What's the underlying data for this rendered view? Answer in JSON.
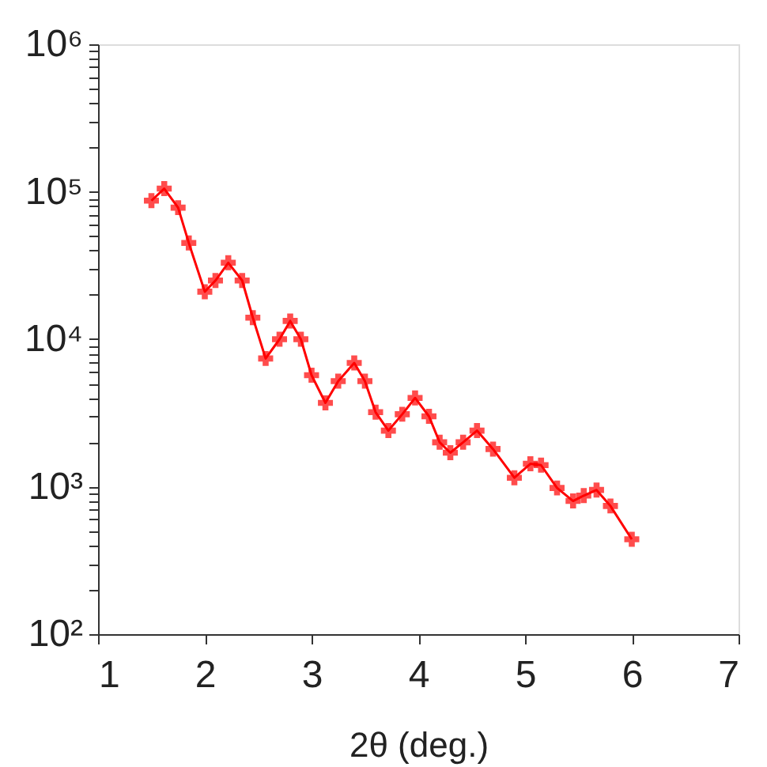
{
  "chart_data": {
    "type": "line",
    "xlabel": "2θ  (deg.)",
    "log": "y",
    "grid": false,
    "marker": "cross",
    "line_style": "solid",
    "xlim": [
      1,
      7
    ],
    "xticks": [
      1,
      2,
      3,
      4,
      5,
      6,
      7
    ],
    "ylim": [
      100,
      1000000
    ],
    "yticks": [
      {
        "value": 100,
        "label": "10²"
      },
      {
        "value": 200,
        "label": null
      },
      {
        "value": 300,
        "label": null
      },
      {
        "value": 400,
        "label": null
      },
      {
        "value": 500,
        "label": null
      },
      {
        "value": 600,
        "label": null
      },
      {
        "value": 700,
        "label": null
      },
      {
        "value": 800,
        "label": null
      },
      {
        "value": 900,
        "label": null
      },
      {
        "value": 1000,
        "label": "10³"
      },
      {
        "value": 2000,
        "label": null
      },
      {
        "value": 3000,
        "label": null
      },
      {
        "value": 4000,
        "label": null
      },
      {
        "value": 5000,
        "label": null
      },
      {
        "value": 6000,
        "label": null
      },
      {
        "value": 7000,
        "label": null
      },
      {
        "value": 8000,
        "label": null
      },
      {
        "value": 9000,
        "label": null
      },
      {
        "value": 10000,
        "label": "10⁴"
      },
      {
        "value": 20000,
        "label": null
      },
      {
        "value": 30000,
        "label": null
      },
      {
        "value": 40000,
        "label": null
      },
      {
        "value": 50000,
        "label": null
      },
      {
        "value": 60000,
        "label": null
      },
      {
        "value": 70000,
        "label": null
      },
      {
        "value": 80000,
        "label": null
      },
      {
        "value": 90000,
        "label": null
      },
      {
        "value": 100000,
        "label": "10⁵"
      },
      {
        "value": 200000,
        "label": null
      },
      {
        "value": 300000,
        "label": null
      },
      {
        "value": 400000,
        "label": null
      },
      {
        "value": 500000,
        "label": null
      },
      {
        "value": 600000,
        "label": null
      },
      {
        "value": 700000,
        "label": null
      },
      {
        "value": 800000,
        "label": null
      },
      {
        "value": 900000,
        "label": null
      },
      {
        "value": 1000000,
        "label": "10⁶"
      }
    ],
    "series": [
      {
        "color": "#ff0000",
        "x": [
          1.5,
          1.62,
          1.75,
          1.85,
          2.0,
          2.1,
          2.22,
          2.35,
          2.45,
          2.57,
          2.7,
          2.8,
          2.9,
          3.0,
          3.13,
          3.25,
          3.4,
          3.5,
          3.6,
          3.72,
          3.85,
          3.97,
          4.1,
          4.2,
          4.3,
          4.42,
          4.55,
          4.7,
          4.9,
          5.05,
          5.15,
          5.3,
          5.45,
          5.55,
          5.67,
          5.8,
          6.0
        ],
        "values": [
          87000,
          105000,
          78000,
          45000,
          21000,
          25000,
          33000,
          25000,
          14000,
          7400,
          10000,
          13300,
          10000,
          5700,
          3700,
          5200,
          6900,
          5200,
          3200,
          2400,
          3100,
          4000,
          3000,
          2000,
          1700,
          2000,
          2400,
          1800,
          1150,
          1430,
          1400,
          980,
          800,
          870,
          950,
          740,
          440
        ]
      }
    ]
  }
}
